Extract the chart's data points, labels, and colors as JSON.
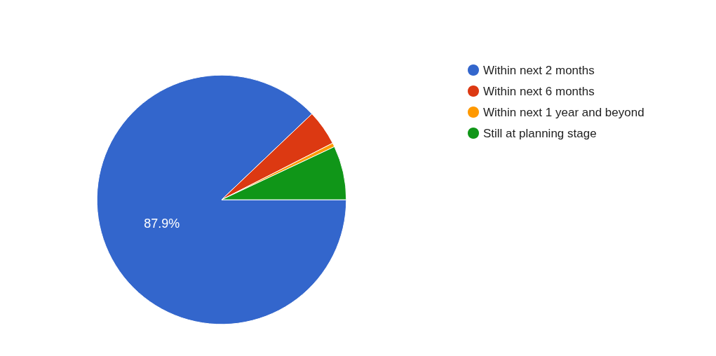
{
  "chart_data": {
    "type": "pie",
    "categories": [
      "Within next 2 months",
      "Within next 6 months",
      "Within next 1 year and beyond",
      "Still at planning stage"
    ],
    "values": [
      87.9,
      4.6,
      0.5,
      7.0
    ],
    "colors": [
      "#3366cc",
      "#dc3912",
      "#ff9900",
      "#109618"
    ],
    "value_labels": [
      "87.9%",
      null,
      null,
      null
    ],
    "legend": "top right"
  }
}
